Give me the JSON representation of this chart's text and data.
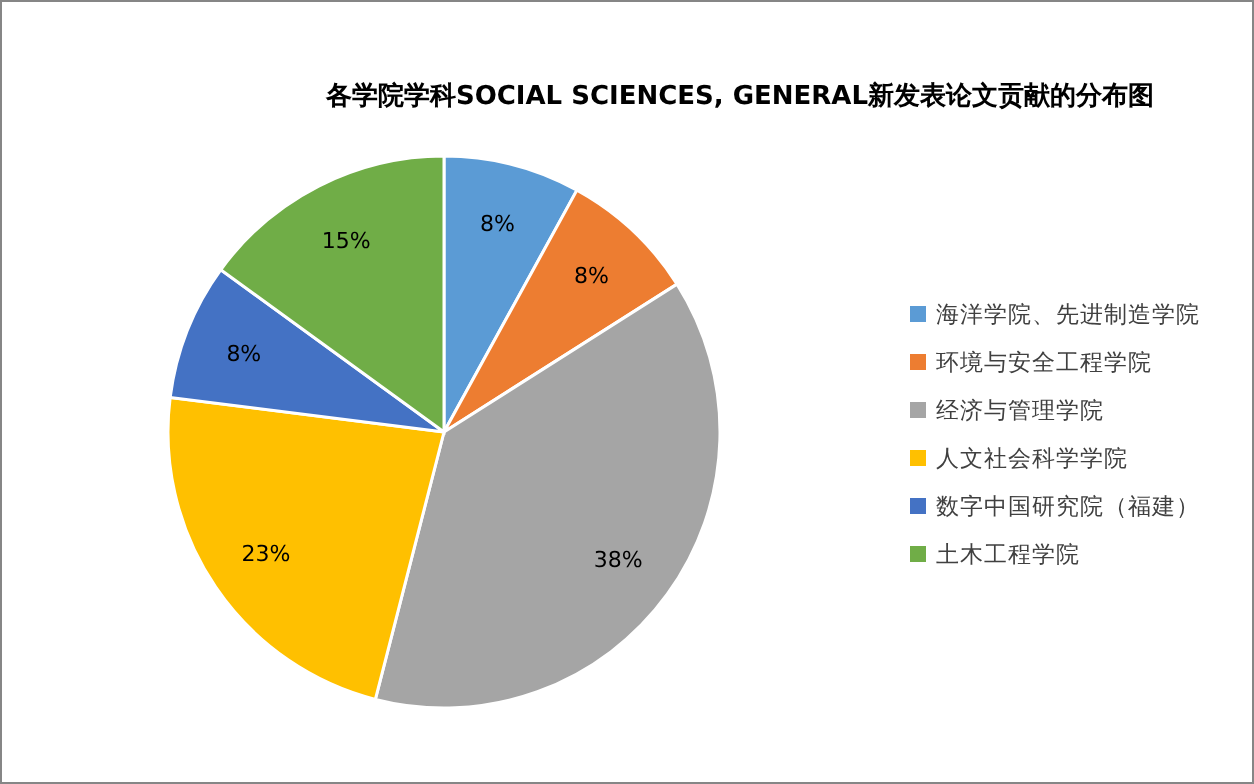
{
  "chart_data": {
    "type": "pie",
    "title": "各学院学科SOCIAL SCIENCES, GENERAL新发表论文贡献的分布图",
    "categories": [
      "海洋学院、先进制造学院",
      "环境与安全工程学院",
      "经济与管理学院",
      "人文社会科学学院",
      "数字中国研究院（福建）",
      "土木工程学院"
    ],
    "values": [
      8,
      8,
      38,
      23,
      8,
      15
    ],
    "colors": [
      "#5b9bd5",
      "#ed7d31",
      "#a5a5a5",
      "#ffc000",
      "#4472c4",
      "#70ad47"
    ],
    "value_labels": [
      "8%",
      "8%",
      "38%",
      "23%",
      "8%",
      "15%"
    ],
    "legend": "right"
  }
}
